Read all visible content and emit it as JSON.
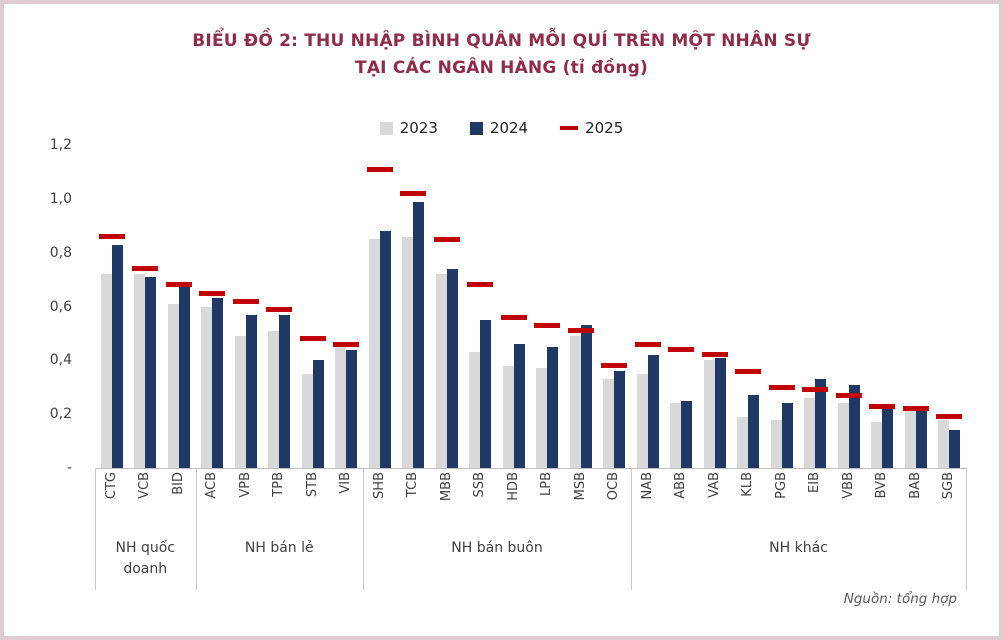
{
  "frame": {
    "border_color": "#e0ccd3",
    "background": "#ffffff"
  },
  "title": {
    "line1": "BIỂU ĐỒ 2: THU NHẬP BÌNH QUÂN MỖI QUÍ TRÊN MỘT NHÂN SỰ",
    "line2": "TẠI CÁC NGÂN HÀNG (tỉ đồng)",
    "color": "#8e2c49"
  },
  "source_note": "Nguồn: tổng hợp",
  "chart_data": {
    "type": "bar",
    "title": "BIỂU ĐỒ 2: THU NHẬP BÌNH QUÂN MỖI QUÍ TRÊN MỘT NHÂN SỰ TẠI CÁC NGÂN HÀNG (tỉ đồng)",
    "xlabel": "",
    "ylabel": "",
    "ylim": [
      0,
      1.2
    ],
    "grid": false,
    "legend_position": "top-center",
    "yticks": [
      {
        "label": "-",
        "value": 0
      },
      {
        "label": "0,2",
        "value": 0.2
      },
      {
        "label": "0,4",
        "value": 0.4
      },
      {
        "label": "0,6",
        "value": 0.6
      },
      {
        "label": "0,8",
        "value": 0.8
      },
      {
        "label": "1,0",
        "value": 1.0
      },
      {
        "label": "1,2",
        "value": 1.2
      }
    ],
    "series": [
      {
        "name": "2023",
        "color": "#d9d9d9",
        "style": "bar"
      },
      {
        "name": "2024",
        "color": "#1f3864",
        "style": "bar"
      },
      {
        "name": "2025",
        "color": "#c00000",
        "style": "dash"
      }
    ],
    "groups": [
      {
        "label": "NH quốc doanh",
        "banks": [
          {
            "code": "CTG",
            "values": [
              0.72,
              0.83,
              0.86
            ]
          },
          {
            "code": "VCB",
            "values": [
              0.72,
              0.71,
              0.74
            ]
          },
          {
            "code": "BID",
            "values": [
              0.61,
              0.69,
              0.68
            ]
          }
        ]
      },
      {
        "label": "NH bán lẻ",
        "banks": [
          {
            "code": "ACB",
            "values": [
              0.6,
              0.63,
              0.65
            ]
          },
          {
            "code": "VPB",
            "values": [
              0.49,
              0.57,
              0.62
            ]
          },
          {
            "code": "TPB",
            "values": [
              0.51,
              0.57,
              0.59
            ]
          },
          {
            "code": "STB",
            "values": [
              0.35,
              0.4,
              0.48
            ]
          },
          {
            "code": "VIB",
            "values": [
              0.45,
              0.44,
              0.46
            ]
          }
        ]
      },
      {
        "label": "NH bán buôn",
        "banks": [
          {
            "code": "SHB",
            "values": [
              0.85,
              0.88,
              1.11
            ]
          },
          {
            "code": "TCB",
            "values": [
              0.86,
              0.99,
              1.02
            ]
          },
          {
            "code": "MBB",
            "values": [
              0.72,
              0.74,
              0.85
            ]
          },
          {
            "code": "SSB",
            "values": [
              0.43,
              0.55,
              0.68
            ]
          },
          {
            "code": "HDB",
            "values": [
              0.38,
              0.46,
              0.56
            ]
          },
          {
            "code": "LPB",
            "values": [
              0.37,
              0.45,
              0.53
            ]
          },
          {
            "code": "MSB",
            "values": [
              0.49,
              0.53,
              0.51
            ]
          },
          {
            "code": "OCB",
            "values": [
              0.33,
              0.36,
              0.38
            ]
          }
        ]
      },
      {
        "label": "NH khác",
        "banks": [
          {
            "code": "NAB",
            "values": [
              0.35,
              0.42,
              0.46
            ]
          },
          {
            "code": "ABB",
            "values": [
              0.24,
              0.25,
              0.44
            ]
          },
          {
            "code": "VAB",
            "values": [
              0.4,
              0.41,
              0.42
            ]
          },
          {
            "code": "KLB",
            "values": [
              0.19,
              0.27,
              0.36
            ]
          },
          {
            "code": "PGB",
            "values": [
              0.18,
              0.24,
              0.3
            ]
          },
          {
            "code": "EIB",
            "values": [
              0.26,
              0.33,
              0.29
            ]
          },
          {
            "code": "VBB",
            "values": [
              0.24,
              0.31,
              0.27
            ]
          },
          {
            "code": "BVB",
            "values": [
              0.17,
              0.22,
              0.23
            ]
          },
          {
            "code": "BAB",
            "values": [
              0.21,
              0.23,
              0.22
            ]
          },
          {
            "code": "SGB",
            "values": [
              0.18,
              0.14,
              0.19
            ]
          }
        ]
      }
    ]
  }
}
